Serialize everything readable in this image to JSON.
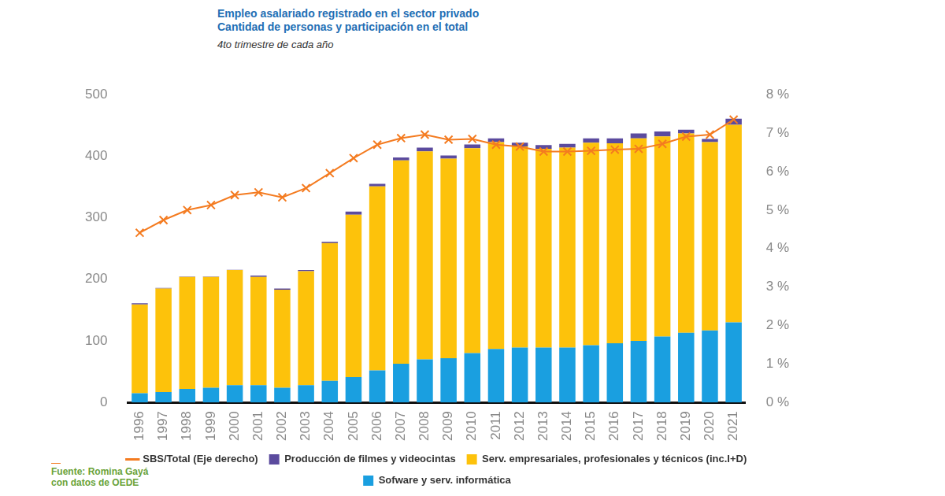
{
  "chart_data": {
    "type": "bar",
    "title": "Empleo asalariado registrado en el sector privado",
    "subtitle": "Cantidad de personas y participación en el total",
    "annotations": [
      "4to trimestre de cada año",
      "Fuente: Romina Gayá con datos de OEDE"
    ],
    "categories": [
      "1996",
      "1997",
      "1998",
      "1999",
      "2000",
      "2001",
      "2002",
      "2003",
      "2004",
      "2005",
      "2006",
      "2007",
      "2008",
      "2009",
      "2010",
      "2011",
      "2012",
      "2013",
      "2014",
      "2015",
      "2016",
      "2017",
      "2018",
      "2019",
      "2020",
      "2021"
    ],
    "series": [
      {
        "name": "SBS/Total (Eje derecho)",
        "type": "line",
        "axis": "y2",
        "color": "#f47b20",
        "marker": "x",
        "line_style": "solid",
        "values": [
          4.41,
          4.74,
          5.0,
          5.13,
          5.39,
          5.46,
          5.33,
          5.57,
          5.96,
          6.35,
          6.7,
          6.87,
          6.96,
          6.83,
          6.85,
          6.7,
          6.65,
          6.52,
          6.52,
          6.54,
          6.57,
          6.59,
          6.72,
          6.91,
          6.96,
          7.35
        ]
      },
      {
        "name": "Producción de filmes y videocintas",
        "type": "bar",
        "color": "#5b4b9e",
        "values": [
          2,
          1,
          0.5,
          0.5,
          0.5,
          2,
          2,
          2,
          2,
          5,
          4,
          5,
          6,
          5,
          6,
          6,
          6,
          6,
          6,
          7,
          8,
          8,
          8,
          6,
          5,
          10
        ]
      },
      {
        "name": "Serv. empresariales, profesionales y técnicos (inc.I+D)",
        "type": "bar",
        "color": "#fdc20b",
        "values": [
          144,
          168,
          182,
          180,
          187,
          176,
          159,
          185,
          224,
          264,
          299,
          330,
          338,
          324,
          333,
          336,
          327,
          323,
          325,
          329,
          325,
          329,
          325,
          324,
          306,
          321
        ]
      },
      {
        "name": "Sofware y serv. informática",
        "type": "bar",
        "color": "#1a9fe0",
        "values": [
          15,
          17,
          22,
          24,
          28,
          28,
          24,
          28,
          35,
          41,
          52,
          63,
          70,
          72,
          80,
          87,
          89,
          89,
          89,
          93,
          96,
          100,
          107,
          113,
          117,
          130
        ]
      }
    ],
    "ylim": [
      0,
      500
    ],
    "yticks": [
      0,
      100,
      200,
      300,
      400,
      500
    ],
    "y2lim": [
      0,
      8
    ],
    "y2ticks": [
      {
        "value": 0,
        "label": "0 %"
      },
      {
        "value": 1,
        "label": "1 %"
      },
      {
        "value": 2,
        "label": "2 %"
      },
      {
        "value": 3,
        "label": "3 %"
      },
      {
        "value": 4,
        "label": "4 %"
      },
      {
        "value": 5,
        "label": "5 %"
      },
      {
        "value": 6,
        "label": "6 %"
      },
      {
        "value": 7,
        "label": "7 %"
      },
      {
        "value": 8,
        "label": "8 %"
      }
    ],
    "stacked": true,
    "grid": false,
    "legend": "bottom",
    "data_labels": false
  }
}
